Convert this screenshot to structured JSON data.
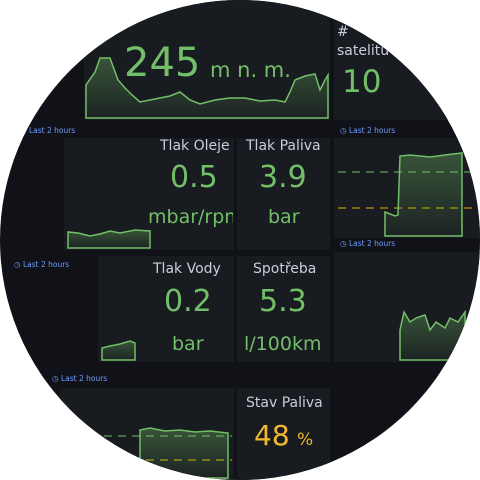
{
  "panels": [
    {
      "value": "245",
      "unit": "m n. m."
    },
    {
      "title_prefix": "#",
      "title": "satelitů",
      "value": "10"
    },
    {
      "title": "Tlak Oleje",
      "value": "0.5",
      "unit": "mbar/rpm"
    },
    {
      "title": "Tlak Paliva",
      "value": "3.9",
      "unit": "bar"
    },
    {
      "title": "Tlak Vody",
      "value": "0.2",
      "unit": "bar"
    },
    {
      "title": "Spotřeba",
      "value": "5.3",
      "unit": "l/100km"
    },
    {
      "title": "Stav Paliva",
      "value": "48",
      "unit": "%"
    }
  ],
  "time_labels": [
    "Last 2 hours",
    "Last 2 hours",
    "Last 2 hours",
    "Last 2 hours",
    "Last 2 hours"
  ]
}
